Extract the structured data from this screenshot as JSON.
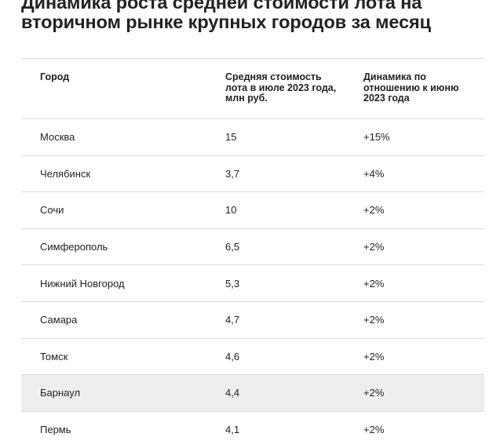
{
  "title": "Динамика роста средней стоимости лота на вторичном рынке крупных городов за месяц",
  "table": {
    "headers": [
      "Город",
      "Средняя стоимость лота в июле 2023 года, млн руб.",
      "Динамика по отношению к июню 2023 года"
    ],
    "rows": [
      {
        "city": "Москва",
        "price": "15",
        "change": "+15%"
      },
      {
        "city": "Челябинск",
        "price": "3,7",
        "change": "+4%"
      },
      {
        "city": "Сочи",
        "price": "10",
        "change": "+2%"
      },
      {
        "city": "Симферополь",
        "price": "6,5",
        "change": "+2%"
      },
      {
        "city": "Нижний Новгород",
        "price": "5,3",
        "change": "+2%"
      },
      {
        "city": "Самара",
        "price": "4,7",
        "change": "+2%"
      },
      {
        "city": "Томск",
        "price": "4,6",
        "change": "+2%"
      },
      {
        "city": "Барнаул",
        "price": "4,4",
        "change": "+2%"
      },
      {
        "city": "Пермь",
        "price": "4,1",
        "change": "+2%"
      }
    ],
    "highlighted_row": 7,
    "highlight_color": "#eeeeee",
    "border_color": "#dcdcdc",
    "text_color": "#222222"
  }
}
